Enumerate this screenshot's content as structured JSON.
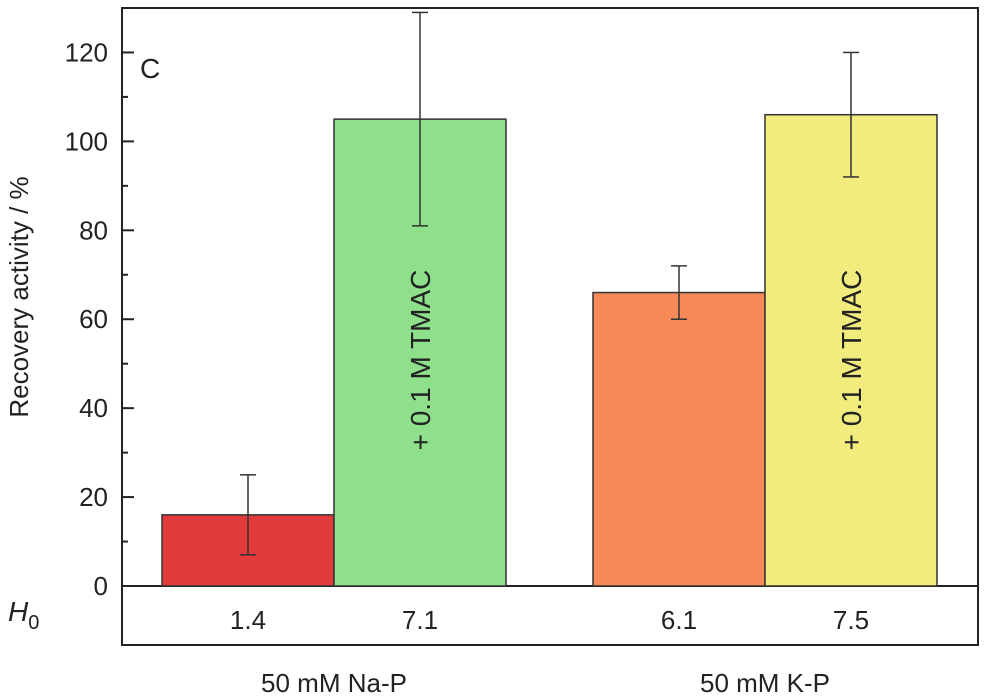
{
  "chart_data": {
    "type": "bar",
    "panel_label": "C",
    "ylabel": "Recovery activity / %",
    "ylim": [
      0,
      130
    ],
    "yticks": [
      0,
      20,
      40,
      60,
      80,
      100,
      120
    ],
    "grid": false,
    "row_label_main": "H",
    "row_label_sub": "0",
    "bars": [
      {
        "value": 16,
        "err_low": 7,
        "err_high": 25,
        "h0": "1.4",
        "color": "#e03a3a",
        "label": ""
      },
      {
        "value": 105,
        "err_low": 81,
        "err_high": 129,
        "h0": "7.1",
        "color": "#8ee08a",
        "label": "+ 0.1 M TMAC"
      },
      {
        "value": 66,
        "err_low": 60,
        "err_high": 72,
        "h0": "6.1",
        "color": "#f78a58",
        "label": ""
      },
      {
        "value": 106,
        "err_low": 92,
        "err_high": 120,
        "h0": "7.5",
        "color": "#f2ec7e",
        "label": "+ 0.1 M TMAC"
      }
    ],
    "groups": [
      "50 mM Na-P",
      "50 mM K-P"
    ]
  }
}
